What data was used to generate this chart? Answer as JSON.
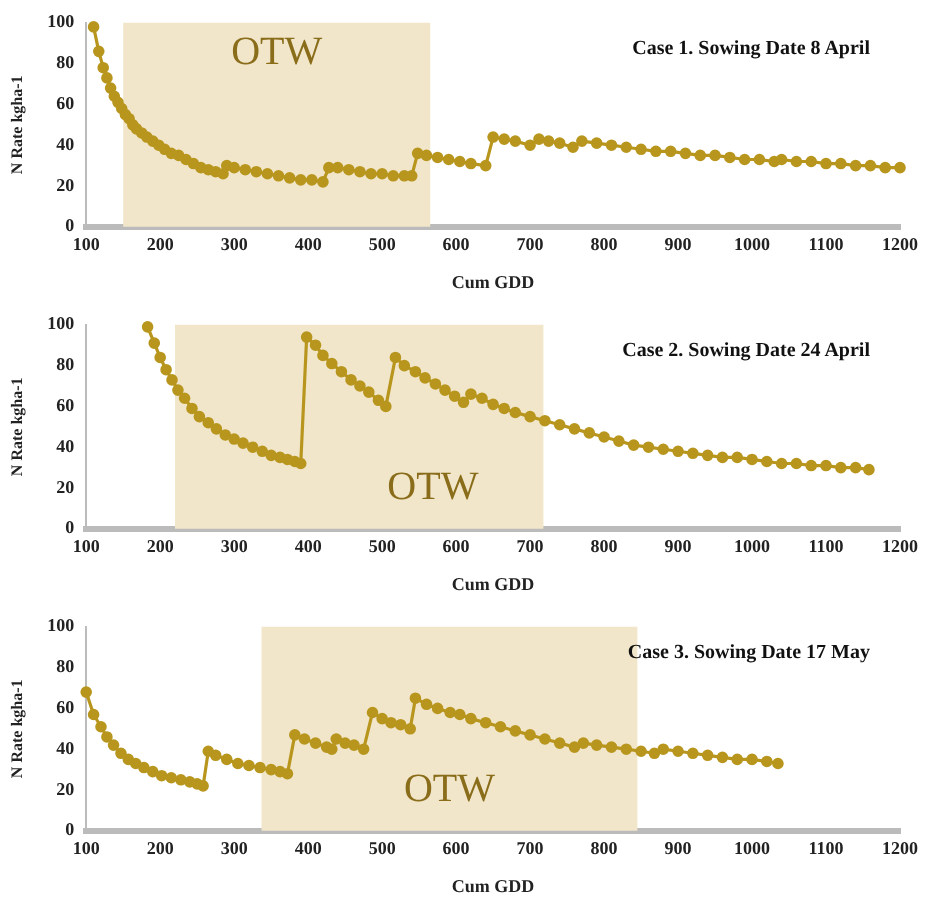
{
  "chart_data": [
    {
      "type": "line",
      "title": "Case 1. Sowing Date 8 April",
      "xlabel": "Cum GDD",
      "ylabel": "N Rate kgha-1",
      "xlim": [
        100,
        1200
      ],
      "xticks": [
        100,
        200,
        300,
        400,
        500,
        600,
        700,
        800,
        900,
        1000,
        1100,
        1200
      ],
      "ylim": [
        0,
        100
      ],
      "yticks": [
        0,
        20,
        40,
        60,
        80,
        100
      ],
      "grid": false,
      "legend": false,
      "marker": "circle",
      "line_style": "solid",
      "bands": [
        {
          "axis": "x",
          "from": 150,
          "to": 565,
          "label": "OTW",
          "color": "#f1e6c9"
        }
      ],
      "series": [
        {
          "color": "#b8961e",
          "x": [
            110,
            117,
            123,
            128,
            133,
            138,
            143,
            148,
            153,
            158,
            163,
            168,
            175,
            182,
            190,
            198,
            206,
            215,
            225,
            235,
            245,
            255,
            265,
            275,
            285,
            290,
            300,
            315,
            330,
            345,
            360,
            375,
            390,
            405,
            420,
            428,
            440,
            455,
            470,
            485,
            500,
            515,
            530,
            540,
            548,
            560,
            575,
            590,
            605,
            620,
            640,
            650,
            665,
            680,
            700,
            712,
            725,
            740,
            758,
            770,
            790,
            810,
            830,
            850,
            870,
            890,
            910,
            930,
            950,
            970,
            990,
            1010,
            1030,
            1040,
            1060,
            1080,
            1100,
            1120,
            1140,
            1160,
            1180,
            1200
          ],
          "values": [
            98,
            86,
            78,
            73,
            68,
            64,
            61,
            58,
            55,
            53,
            50,
            48,
            46,
            44,
            42,
            40,
            38,
            36,
            35,
            33,
            31,
            29,
            28,
            27,
            26,
            30,
            29,
            28,
            27,
            26,
            25,
            24,
            23,
            23,
            22,
            29,
            29,
            28,
            27,
            26,
            26,
            25,
            25,
            25,
            36,
            35,
            34,
            33,
            32,
            31,
            30,
            44,
            43,
            42,
            40,
            43,
            42,
            41,
            39,
            42,
            41,
            40,
            39,
            38,
            37,
            37,
            36,
            35,
            35,
            34,
            33,
            33,
            32,
            33,
            32,
            32,
            31,
            31,
            30,
            30,
            29,
            29
          ]
        }
      ]
    },
    {
      "type": "line",
      "title": "Case 2. Sowing Date 24 April",
      "xlabel": "Cum GDD",
      "ylabel": "N Rate kgha-1",
      "xlim": [
        100,
        1200
      ],
      "xticks": [
        100,
        200,
        300,
        400,
        500,
        600,
        700,
        800,
        900,
        1000,
        1100,
        1200
      ],
      "ylim": [
        0,
        100
      ],
      "yticks": [
        0,
        20,
        40,
        60,
        80,
        100
      ],
      "grid": false,
      "legend": false,
      "marker": "circle",
      "line_style": "solid",
      "bands": [
        {
          "axis": "x",
          "from": 220,
          "to": 718,
          "label": "OTW",
          "color": "#f1e6c9"
        }
      ],
      "series": [
        {
          "color": "#b8961e",
          "x": [
            183,
            192,
            200,
            208,
            216,
            224,
            233,
            243,
            253,
            265,
            276,
            288,
            300,
            312,
            325,
            338,
            350,
            362,
            372,
            382,
            390,
            398,
            410,
            420,
            432,
            445,
            458,
            470,
            482,
            495,
            505,
            518,
            530,
            545,
            558,
            572,
            585,
            598,
            610,
            620,
            635,
            650,
            665,
            680,
            700,
            720,
            740,
            760,
            780,
            800,
            820,
            840,
            860,
            880,
            900,
            920,
            940,
            960,
            980,
            1000,
            1020,
            1040,
            1060,
            1080,
            1100,
            1120,
            1140,
            1158
          ],
          "values": [
            99,
            91,
            84,
            78,
            73,
            68,
            64,
            59,
            55,
            52,
            49,
            46,
            44,
            42,
            40,
            38,
            36,
            35,
            34,
            33,
            32,
            94,
            90,
            85,
            81,
            77,
            73,
            70,
            67,
            63,
            60,
            84,
            80,
            77,
            74,
            71,
            68,
            65,
            62,
            66,
            64,
            61,
            59,
            57,
            55,
            53,
            51,
            49,
            47,
            45,
            43,
            41,
            40,
            39,
            38,
            37,
            36,
            35,
            35,
            34,
            33,
            32,
            32,
            31,
            31,
            30,
            30,
            29
          ]
        }
      ]
    },
    {
      "type": "line",
      "title": "Case 3. Sowing Date 17 May",
      "xlabel": "Cum GDD",
      "ylabel": "N Rate kgha-1",
      "xlim": [
        100,
        1200
      ],
      "xticks": [
        100,
        200,
        300,
        400,
        500,
        600,
        700,
        800,
        900,
        1000,
        1100,
        1200
      ],
      "ylim": [
        0,
        100
      ],
      "yticks": [
        0,
        20,
        40,
        60,
        80,
        100
      ],
      "grid": false,
      "legend": false,
      "marker": "circle",
      "line_style": "solid",
      "bands": [
        {
          "axis": "x",
          "from": 337,
          "to": 845,
          "label": "OTW",
          "color": "#f1e6c9"
        }
      ],
      "series": [
        {
          "color": "#b8961e",
          "x": [
            100,
            110,
            120,
            128,
            137,
            147,
            157,
            167,
            178,
            190,
            202,
            215,
            228,
            240,
            250,
            258,
            265,
            275,
            290,
            305,
            320,
            335,
            350,
            362,
            372,
            382,
            395,
            410,
            425,
            432,
            438,
            450,
            462,
            475,
            487,
            500,
            512,
            525,
            538,
            545,
            560,
            575,
            592,
            605,
            620,
            640,
            660,
            680,
            700,
            720,
            740,
            760,
            772,
            790,
            810,
            830,
            850,
            868,
            880,
            900,
            920,
            940,
            960,
            980,
            1000,
            1020,
            1035
          ],
          "values": [
            68,
            57,
            51,
            46,
            42,
            38,
            35,
            33,
            31,
            29,
            27,
            26,
            25,
            24,
            23,
            22,
            39,
            37,
            35,
            33,
            32,
            31,
            30,
            29,
            28,
            47,
            45,
            43,
            41,
            40,
            45,
            43,
            42,
            40,
            58,
            55,
            53,
            52,
            50,
            65,
            62,
            60,
            58,
            57,
            55,
            53,
            51,
            49,
            47,
            45,
            43,
            41,
            43,
            42,
            41,
            40,
            39,
            38,
            40,
            39,
            38,
            37,
            36,
            35,
            35,
            34,
            33
          ]
        }
      ]
    }
  ]
}
